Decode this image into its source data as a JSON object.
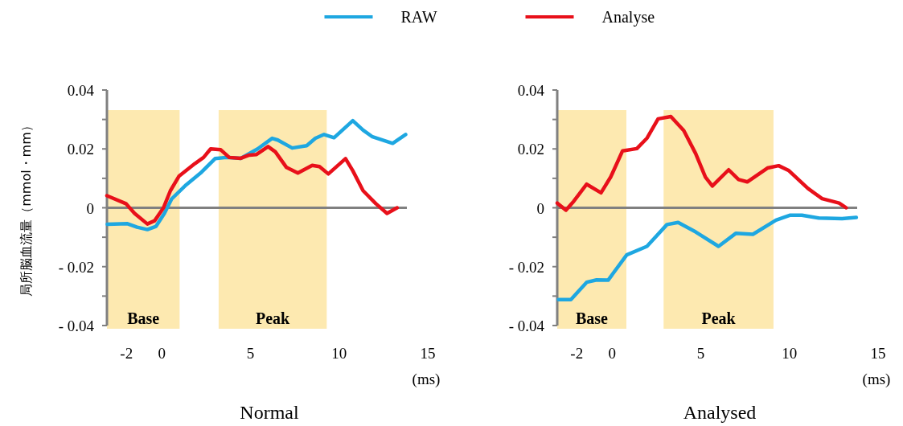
{
  "chart_data": [
    {
      "type": "line",
      "title": "Normal",
      "xlabel": "(ms)",
      "ylabel": "局所脳血流量（mmol・mm）",
      "legend": "top",
      "xlim": [
        -3.1,
        15
      ],
      "xticks": [
        {
          "value": -2,
          "label": "-2"
        },
        0,
        5,
        10,
        15
      ],
      "ylim": [
        -0.04,
        0.04
      ],
      "yticks": [
        {
          "value": -0.04,
          "label": "- 0.04"
        },
        {
          "value": -0.03,
          "label": null
        },
        {
          "value": -0.02,
          "label": "- 0.02"
        },
        {
          "value": -0.01,
          "label": null
        },
        0,
        {
          "value": 0.01,
          "label": null
        },
        0.02,
        {
          "value": 0.03,
          "label": null
        },
        0.04
      ],
      "ref_lines": [
        {
          "axis": "y",
          "value": 0,
          "color": "#808080"
        }
      ],
      "bands": [
        {
          "axis": "x",
          "from": -3.1,
          "to": 1.0,
          "label": "Base",
          "color": "#fde9b0"
        },
        {
          "axis": "x",
          "from": 3.2,
          "to": 9.3,
          "label": "Peak",
          "color": "#fde9b0"
        }
      ],
      "series": [
        {
          "name": "RAW",
          "color": "#1ea7e1",
          "x": [
            -3.08,
            -1.94,
            -1.4,
            -0.82,
            -0.33,
            0.14,
            0.55,
            1.37,
            2.18,
            3.0,
            3.63,
            4.45,
            5.4,
            6.22,
            6.54,
            7.35,
            8.17,
            8.66,
            9.15,
            9.71,
            10.77,
            11.35,
            11.88,
            13.02,
            13.75
          ],
          "values": [
            -0.0056,
            -0.0054,
            -0.0066,
            -0.0074,
            -0.0063,
            -0.0019,
            0.003,
            0.0078,
            0.0118,
            0.0167,
            0.0171,
            0.0168,
            0.02,
            0.0236,
            0.023,
            0.0203,
            0.0211,
            0.0236,
            0.0249,
            0.0238,
            0.0296,
            0.0264,
            0.0241,
            0.0219,
            0.0249
          ]
        },
        {
          "name": "Analyse",
          "color": "#e8101a",
          "x": [
            -3.1,
            -2.03,
            -1.54,
            -0.82,
            -0.41,
            0.09,
            0.48,
            0.96,
            1.86,
            2.35,
            2.75,
            3.32,
            3.8,
            4.45,
            4.93,
            5.34,
            5.99,
            6.4,
            7.03,
            7.67,
            8.48,
            8.89,
            9.39,
            10.36,
            10.77,
            11.35,
            12.07,
            12.7,
            13.27
          ],
          "values": [
            0.0041,
            0.0014,
            -0.0019,
            -0.0055,
            -0.0044,
            0,
            0.0058,
            0.0107,
            0.015,
            0.0171,
            0.02,
            0.0197,
            0.0171,
            0.0168,
            0.0179,
            0.0181,
            0.0208,
            0.019,
            0.0137,
            0.0118,
            0.0144,
            0.014,
            0.0115,
            0.0167,
            0.0126,
            0.0058,
            0.0014,
            -0.0019,
            0
          ]
        }
      ]
    },
    {
      "type": "line",
      "title": "Analysed",
      "xlabel": "(ms)",
      "xlim": [
        -3.1,
        15
      ],
      "xticks": [
        {
          "value": -2,
          "label": "-2"
        },
        0,
        5,
        10,
        15
      ],
      "ylim": [
        -0.04,
        0.04
      ],
      "yticks": [
        {
          "value": -0.04,
          "label": "- 0.04"
        },
        {
          "value": -0.03,
          "label": null
        },
        {
          "value": -0.02,
          "label": "- 0.02"
        },
        {
          "value": -0.01,
          "label": null
        },
        0,
        {
          "value": 0.01,
          "label": null
        },
        0.02,
        {
          "value": 0.03,
          "label": null
        },
        0.04
      ],
      "ref_lines": [
        {
          "axis": "y",
          "value": 0,
          "color": "#808080"
        }
      ],
      "bands": [
        {
          "axis": "x",
          "from": -3.1,
          "to": 0.8,
          "label": "Base",
          "color": "#fde9b0"
        },
        {
          "axis": "x",
          "from": 2.9,
          "to": 9.1,
          "label": "Peak",
          "color": "#fde9b0"
        }
      ],
      "series": [
        {
          "color": "#1ea7e1",
          "x": [
            -3.03,
            -2.33,
            -1.44,
            -0.88,
            -0.23,
            0.82,
            1.96,
            3.09,
            3.72,
            4.71,
            6.0,
            6.97,
            7.94,
            9.24,
            10.05,
            10.7,
            11.66,
            12.97,
            13.77
          ],
          "values": [
            -0.0312,
            -0.0312,
            -0.0253,
            -0.0245,
            -0.0246,
            -0.016,
            -0.0131,
            -0.0057,
            -0.005,
            -0.0082,
            -0.0131,
            -0.0087,
            -0.009,
            -0.0042,
            -0.0025,
            -0.0025,
            -0.0035,
            -0.0037,
            -0.0033
          ]
        },
        {
          "color": "#e8101a",
          "x": [
            -3.1,
            -2.61,
            -2.17,
            -1.44,
            -0.63,
            -0.08,
            0.58,
            1.39,
            1.97,
            2.59,
            3.31,
            4.04,
            4.71,
            5.26,
            5.65,
            6.57,
            7.13,
            7.62,
            8.76,
            9.39,
            9.97,
            11.04,
            11.84,
            12.8,
            13.2
          ],
          "values": [
            0.0016,
            -0.0008,
            0.0022,
            0.008,
            0.0051,
            0.0105,
            0.0193,
            0.0201,
            0.0237,
            0.0302,
            0.031,
            0.0262,
            0.0184,
            0.0104,
            0.0074,
            0.0129,
            0.0096,
            0.0088,
            0.0135,
            0.0143,
            0.0126,
            0.0066,
            0.0031,
            0.0016,
            0
          ]
        }
      ]
    }
  ]
}
